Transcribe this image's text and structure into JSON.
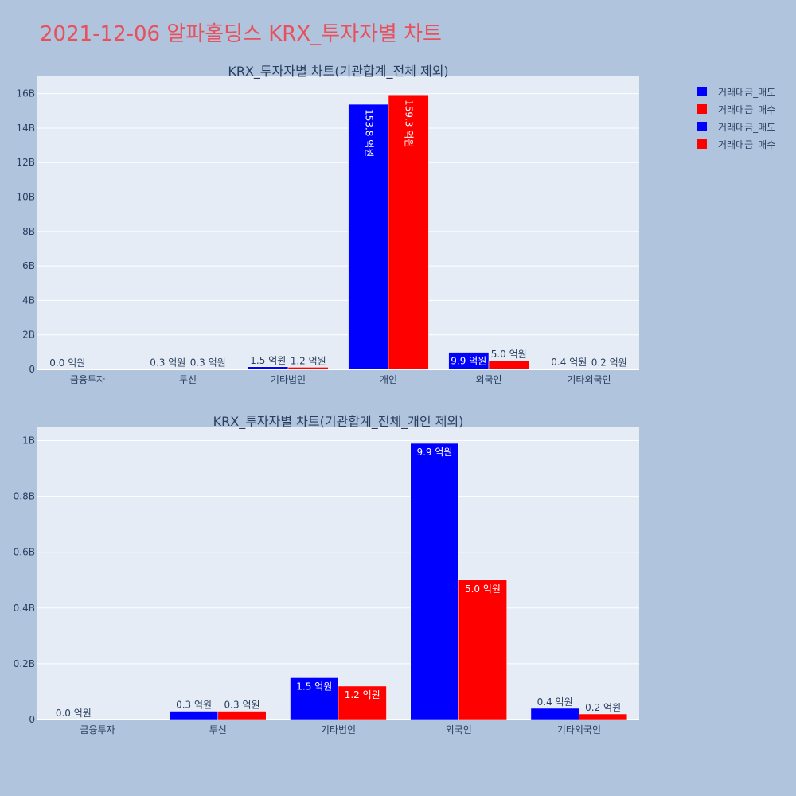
{
  "page_title": "2021-12-06 알파홀딩스 KRX_투자자별 차트",
  "colors": {
    "sell": "#0000ff",
    "buy": "#ff0000",
    "background": "#b0c4de",
    "plot_bg": "#e5ecf6",
    "title": "#e8505b"
  },
  "legend": {
    "placement": "top-right",
    "items": [
      {
        "label": "거래대금_매도",
        "color": "#0000ff"
      },
      {
        "label": "거래대금_매수",
        "color": "#ff0000"
      },
      {
        "label": "거래대금_매도",
        "color": "#0000ff"
      },
      {
        "label": "거래대금_매수",
        "color": "#ff0000"
      }
    ]
  },
  "chart_data": [
    {
      "type": "bar",
      "title": "KRX_투자자별 차트(기관합계_전체 제외)",
      "categories": [
        "금융투자",
        "투신",
        "기타법인",
        "개인",
        "외국인",
        "기타외국인"
      ],
      "ylim": [
        0,
        17000000000
      ],
      "yticks": [
        0,
        2000000000,
        4000000000,
        6000000000,
        8000000000,
        10000000000,
        12000000000,
        14000000000,
        16000000000
      ],
      "ytick_labels": [
        "0",
        "2B",
        "4B",
        "6B",
        "8B",
        "10B",
        "12B",
        "14B",
        "16B"
      ],
      "grid": true,
      "series": [
        {
          "name": "거래대금_매도",
          "color": "#0000ff",
          "values": [
            0,
            30000000,
            150000000,
            15380000000,
            990000000,
            40000000
          ],
          "labels": [
            "0.0 억원",
            "0.3 억원",
            "1.5 억원",
            "153.8 억원",
            "9.9 억원",
            "0.4 억원"
          ]
        },
        {
          "name": "거래대금_매수",
          "color": "#ff0000",
          "values": [
            0,
            30000000,
            120000000,
            15930000000,
            500000000,
            20000000
          ],
          "labels": [
            "",
            "0.3 억원",
            "1.2 억원",
            "159.3 억원",
            "5.0 억원",
            "0.2 억원"
          ]
        }
      ]
    },
    {
      "type": "bar",
      "title": "KRX_투자자별 차트(기관합계_전체_개인 제외)",
      "categories": [
        "금융투자",
        "투신",
        "기타법인",
        "외국인",
        "기타외국인"
      ],
      "ylim": [
        0,
        1050000000
      ],
      "yticks": [
        0,
        200000000,
        400000000,
        600000000,
        800000000,
        1000000000
      ],
      "ytick_labels": [
        "0",
        "0.2B",
        "0.4B",
        "0.6B",
        "0.8B",
        "1B"
      ],
      "grid": true,
      "series": [
        {
          "name": "거래대금_매도",
          "color": "#0000ff",
          "values": [
            0,
            30000000,
            150000000,
            990000000,
            40000000
          ],
          "labels": [
            "0.0 억원",
            "0.3 억원",
            "1.5 억원",
            "9.9 억원",
            "0.4 억원"
          ]
        },
        {
          "name": "거래대금_매수",
          "color": "#ff0000",
          "values": [
            0,
            30000000,
            120000000,
            500000000,
            20000000
          ],
          "labels": [
            "",
            "0.3 억원",
            "1.2 억원",
            "5.0 억원",
            "0.2 억원"
          ]
        }
      ]
    }
  ]
}
